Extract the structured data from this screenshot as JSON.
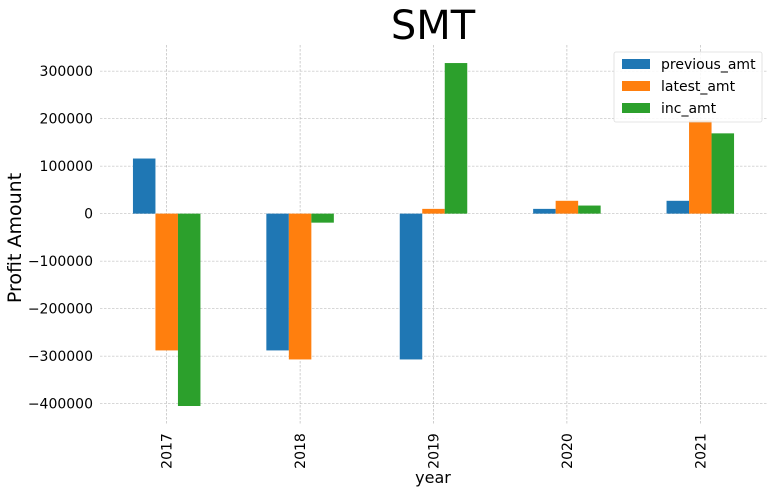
{
  "chart_data": {
    "type": "bar",
    "title": "SMT",
    "xlabel": "year",
    "ylabel": "Profit Amount",
    "categories": [
      "2017",
      "2018",
      "2019",
      "2020",
      "2021"
    ],
    "series": [
      {
        "name": "previous_amt",
        "color": "#1f77b4",
        "values": [
          116000,
          -288000,
          -307000,
          10000,
          27000
        ]
      },
      {
        "name": "latest_amt",
        "color": "#ff7f0e",
        "values": [
          -288000,
          -307000,
          10000,
          27000,
          196000
        ]
      },
      {
        "name": "inc_amt",
        "color": "#2ca02c",
        "values": [
          -405000,
          -19000,
          317000,
          17000,
          169000
        ]
      }
    ],
    "yticks": [
      -400000,
      -300000,
      -200000,
      -100000,
      0,
      100000,
      200000,
      300000
    ],
    "ytick_labels": [
      "−400000",
      "−300000",
      "−200000",
      "−100000",
      "0",
      "100000",
      "200000",
      "300000"
    ],
    "ylim": [
      -445000,
      355000
    ],
    "grid": true,
    "legend_position": "top-right"
  }
}
